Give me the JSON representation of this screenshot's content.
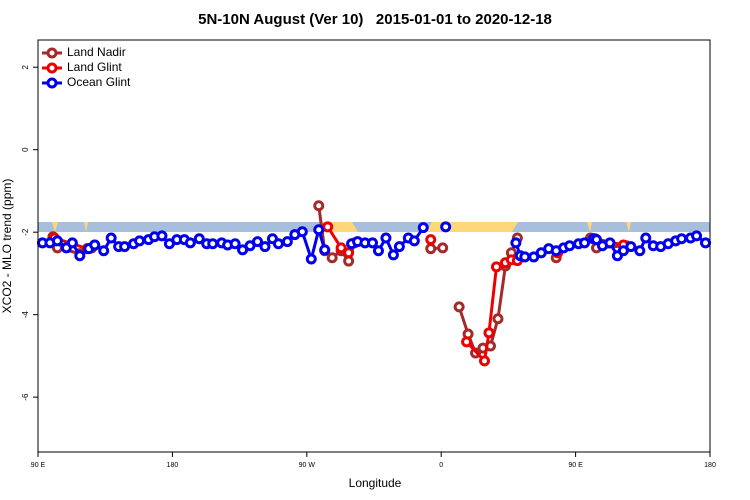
{
  "chart_data": {
    "type": "line",
    "title": "5N-10N August (Ver 10)   2015-01-01 to 2020-12-18",
    "x_label": "Longitude",
    "y_label": "XCO2 - MLO trend (ppm)",
    "xlim": [
      90,
      540
    ],
    "ylim": [
      2.66,
      -7.33
    ],
    "xticks": [
      {
        "value": 90,
        "label": "90 E"
      },
      180,
      {
        "value": 270,
        "label": "90 W"
      },
      {
        "value": 360,
        "label": "0"
      },
      {
        "value": 450,
        "label": "90 E"
      },
      {
        "value": 540,
        "label": "180"
      }
    ],
    "yticks": [
      2,
      0,
      -2,
      -4,
      -6
    ],
    "legend": "upper left",
    "series": [
      {
        "name": "Land Nadir",
        "color": "#a52a2a",
        "x": [
          100,
          103,
          118,
          126,
          200,
          278,
          282,
          287,
          293,
          298,
          302,
          320,
          353,
          361,
          365,
          372,
          378,
          383,
          388,
          393,
          398,
          403,
          407,
          411,
          420,
          437,
          445,
          460,
          464,
          484
        ],
        "values": [
          -2.11,
          -2.38,
          -2.52,
          -2.38,
          null,
          -1.36,
          -2.45,
          -2.62,
          -2.45,
          -2.7,
          -2.26,
          null,
          -2.4,
          -2.38,
          null,
          -3.81,
          -4.47,
          -4.93,
          -4.81,
          -4.76,
          -4.1,
          -2.82,
          -2.5,
          -2.14,
          null,
          -2.62,
          null,
          -2.14,
          -2.38,
          -2.33
        ]
      },
      {
        "name": "Land Glint",
        "color": "#ee0000",
        "x": [
          101,
          123,
          128,
          200,
          284,
          293,
          298,
          320,
          353,
          365,
          377,
          389,
          392,
          397,
          403,
          407,
          411,
          420,
          438,
          445,
          463,
          482
        ],
        "values": [
          -2.14,
          -2.4,
          -2.31,
          null,
          -1.87,
          -2.38,
          -2.5,
          null,
          -2.18,
          null,
          -4.66,
          -5.12,
          -4.44,
          -2.84,
          -2.74,
          -2.67,
          -2.69,
          null,
          -2.5,
          null,
          -2.16,
          -2.31
        ]
      },
      {
        "name": "Ocean Glint",
        "color": "#0000ee",
        "x": [
          93,
          98,
          103,
          109,
          113,
          118,
          124,
          128,
          134,
          139,
          144,
          148,
          154,
          158,
          164,
          168,
          173,
          178,
          183,
          188,
          192,
          198,
          203,
          207,
          213,
          217,
          222,
          227,
          232,
          237,
          242,
          247,
          251,
          257,
          262,
          267,
          273,
          278,
          282,
          291,
          300,
          304,
          309,
          314,
          318,
          323,
          328,
          332,
          338,
          342,
          348,
          355,
          363,
          390,
          410,
          413,
          416,
          422,
          427,
          432,
          437,
          442,
          446,
          452,
          456,
          462,
          464,
          468,
          473,
          478,
          482,
          487,
          493,
          497,
          502,
          507,
          512,
          517,
          521,
          527,
          531,
          537
        ],
        "values": [
          -2.26,
          -2.26,
          -2.21,
          -2.38,
          -2.26,
          -2.57,
          -2.4,
          -2.31,
          -2.45,
          -2.14,
          -2.35,
          -2.35,
          -2.28,
          -2.21,
          -2.18,
          -2.11,
          -2.09,
          -2.28,
          -2.18,
          -2.18,
          -2.26,
          -2.16,
          -2.28,
          -2.28,
          -2.26,
          -2.31,
          -2.28,
          -2.43,
          -2.33,
          -2.23,
          -2.35,
          -2.16,
          -2.28,
          -2.23,
          -2.06,
          -1.99,
          -2.65,
          -1.94,
          -2.43,
          null,
          -2.28,
          -2.23,
          -2.26,
          -2.26,
          -2.45,
          -2.14,
          -2.55,
          -2.35,
          -2.14,
          -2.21,
          -1.89,
          null,
          -1.87,
          null,
          -2.26,
          -2.57,
          -2.6,
          -2.6,
          -2.5,
          -2.4,
          -2.45,
          -2.38,
          -2.33,
          -2.28,
          -2.26,
          -2.16,
          -2.18,
          -2.33,
          -2.26,
          -2.57,
          -2.45,
          -2.35,
          -2.45,
          -2.14,
          -2.33,
          -2.35,
          -2.28,
          -2.21,
          -2.16,
          -2.14,
          -2.09,
          -2.26
        ]
      }
    ]
  }
}
